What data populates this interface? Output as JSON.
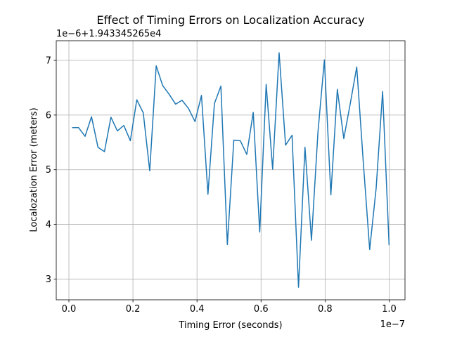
{
  "chart_data": {
    "type": "line",
    "title": "Effect of Timing Errors on Localization Accuracy",
    "xlabel": "Timing Error (seconds)",
    "ylabel": "Localozation Error (meters)",
    "x_offset_label": "1e−7",
    "y_offset_label": "1e−6+1.943345265e4",
    "x_ticks": [
      0.0,
      0.2,
      0.4,
      0.6,
      0.8,
      1.0
    ],
    "x_tick_labels": [
      "0.0",
      "0.2",
      "0.4",
      "0.6",
      "0.8",
      "1.0"
    ],
    "y_ticks": [
      3,
      4,
      5,
      6,
      7
    ],
    "y_tick_labels": [
      "3",
      "4",
      "5",
      "6",
      "7"
    ],
    "xlim": [
      -0.0395,
      1.0495
    ],
    "ylim": [
      2.62,
      7.36
    ],
    "grid": true,
    "series": [
      {
        "color": "#1f77b4",
        "x": [
          0.01,
          0.0302,
          0.0504,
          0.0706,
          0.0908,
          0.111,
          0.1312,
          0.1514,
          0.1716,
          0.1918,
          0.212,
          0.2322,
          0.2524,
          0.2726,
          0.2928,
          0.313,
          0.3332,
          0.3534,
          0.3736,
          0.3938,
          0.414,
          0.4342,
          0.4544,
          0.4746,
          0.4948,
          0.515,
          0.5352,
          0.5554,
          0.5756,
          0.5958,
          0.616,
          0.6362,
          0.6564,
          0.6766,
          0.6968,
          0.717,
          0.7372,
          0.7574,
          0.7776,
          0.7978,
          0.818,
          0.8382,
          0.8584,
          0.8786,
          0.8988,
          0.919,
          0.9392,
          0.9594,
          0.9796,
          0.9998
        ],
        "values": [
          5.77,
          5.77,
          5.61,
          5.97,
          5.41,
          5.33,
          5.96,
          5.71,
          5.81,
          5.53,
          6.28,
          6.04,
          4.98,
          6.9,
          6.54,
          6.38,
          6.2,
          6.27,
          6.12,
          5.88,
          6.36,
          4.55,
          6.21,
          6.53,
          3.63,
          5.54,
          5.53,
          5.28,
          6.05,
          3.86,
          6.56,
          5.01,
          7.14,
          5.45,
          5.63,
          2.85,
          5.41,
          3.71,
          5.68,
          7.01,
          4.54,
          6.47,
          5.57,
          6.21,
          6.88,
          5.16,
          3.54,
          4.66,
          6.43,
          3.62
        ]
      }
    ]
  }
}
